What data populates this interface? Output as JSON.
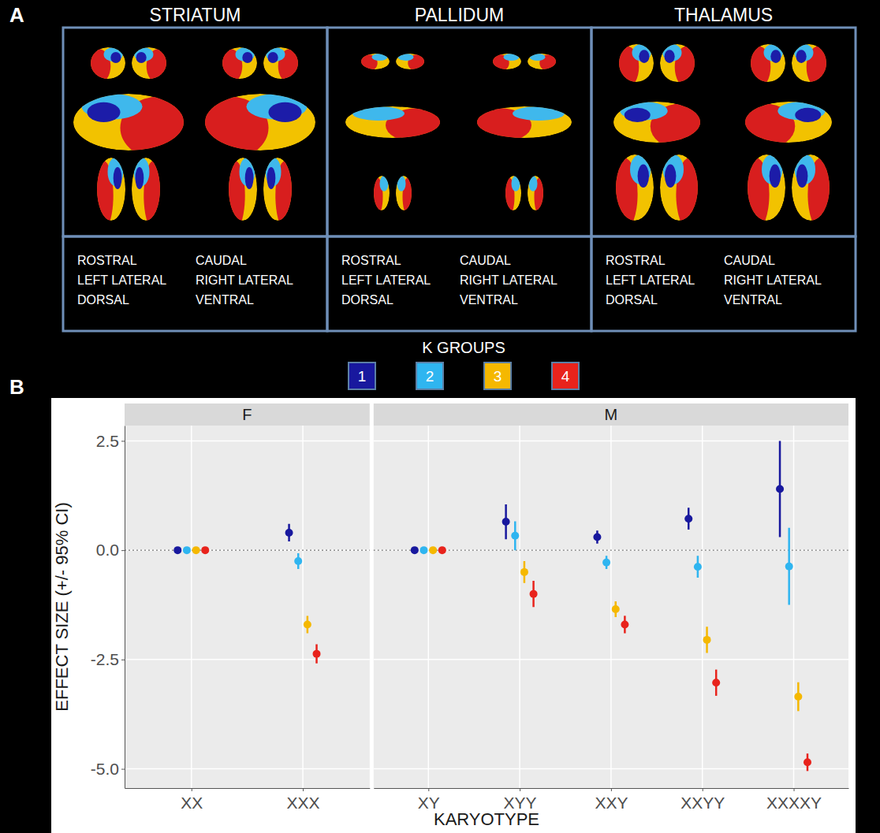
{
  "panel_a": {
    "label": "A",
    "panels": [
      {
        "title": "STRIATUM",
        "views_left": [
          "ROSTRAL",
          "LEFT LATERAL",
          "DORSAL"
        ],
        "views_right": [
          "CAUDAL",
          "RIGHT LATERAL",
          "VENTRAL"
        ]
      },
      {
        "title": "PALLIDUM",
        "views_left": [
          "ROSTRAL",
          "LEFT LATERAL",
          "DORSAL"
        ],
        "views_right": [
          "CAUDAL",
          "RIGHT LATERAL",
          "VENTRAL"
        ]
      },
      {
        "title": "THALAMUS",
        "views_left": [
          "ROSTRAL",
          "LEFT LATERAL",
          "DORSAL"
        ],
        "views_right": [
          "CAUDAL",
          "RIGHT LATERAL",
          "VENTRAL"
        ]
      }
    ]
  },
  "chart_data": {
    "type": "scatter",
    "panel_label": "B",
    "x_label": "KARYOTYPE",
    "y_label": "EFFECT SIZE (+/- 95% CI)",
    "legend_title": "K GROUPS",
    "legend": "top",
    "grid": true,
    "categories": [
      "XX",
      "XXX",
      "XY",
      "XYY",
      "XXY",
      "XXYY",
      "XXXXY"
    ],
    "facets": [
      {
        "label": "F",
        "count": 2
      },
      {
        "label": "M",
        "count": 5
      }
    ],
    "ylim": [
      -5.44,
      2.85
    ],
    "yticks": [
      {
        "value": -5,
        "label": "-5.0"
      },
      {
        "value": -2.5,
        "label": "-2.5"
      },
      {
        "value": 0,
        "label": "0.0"
      },
      {
        "value": 2.5,
        "label": "2.5"
      }
    ],
    "reference_line": 0,
    "series": [
      {
        "name": "1",
        "color": "#18189e",
        "values": [
          0,
          0.4,
          0,
          0.65,
          0.3,
          0.72,
          1.4
        ],
        "errors": [
          0.07,
          0.2,
          0.07,
          0.4,
          0.15,
          0.25,
          1.1
        ]
      },
      {
        "name": "2",
        "color": "#2fb5f0",
        "values": [
          0,
          -0.25,
          0,
          0.33,
          -0.28,
          -0.38,
          -0.37
        ],
        "errors": [
          0.07,
          0.18,
          0.07,
          0.33,
          0.15,
          0.25,
          0.88
        ]
      },
      {
        "name": "3",
        "color": "#f5b800",
        "values": [
          0,
          -1.7,
          0,
          -0.5,
          -1.35,
          -2.05,
          -3.35
        ],
        "errors": [
          0.07,
          0.2,
          0.07,
          0.25,
          0.18,
          0.3,
          0.33
        ]
      },
      {
        "name": "4",
        "color": "#e8231c",
        "values": [
          0,
          -2.37,
          0,
          -1.0,
          -1.7,
          -3.03,
          -4.85
        ],
        "errors": [
          0.07,
          0.22,
          0.07,
          0.3,
          0.2,
          0.3,
          0.2
        ]
      }
    ]
  }
}
